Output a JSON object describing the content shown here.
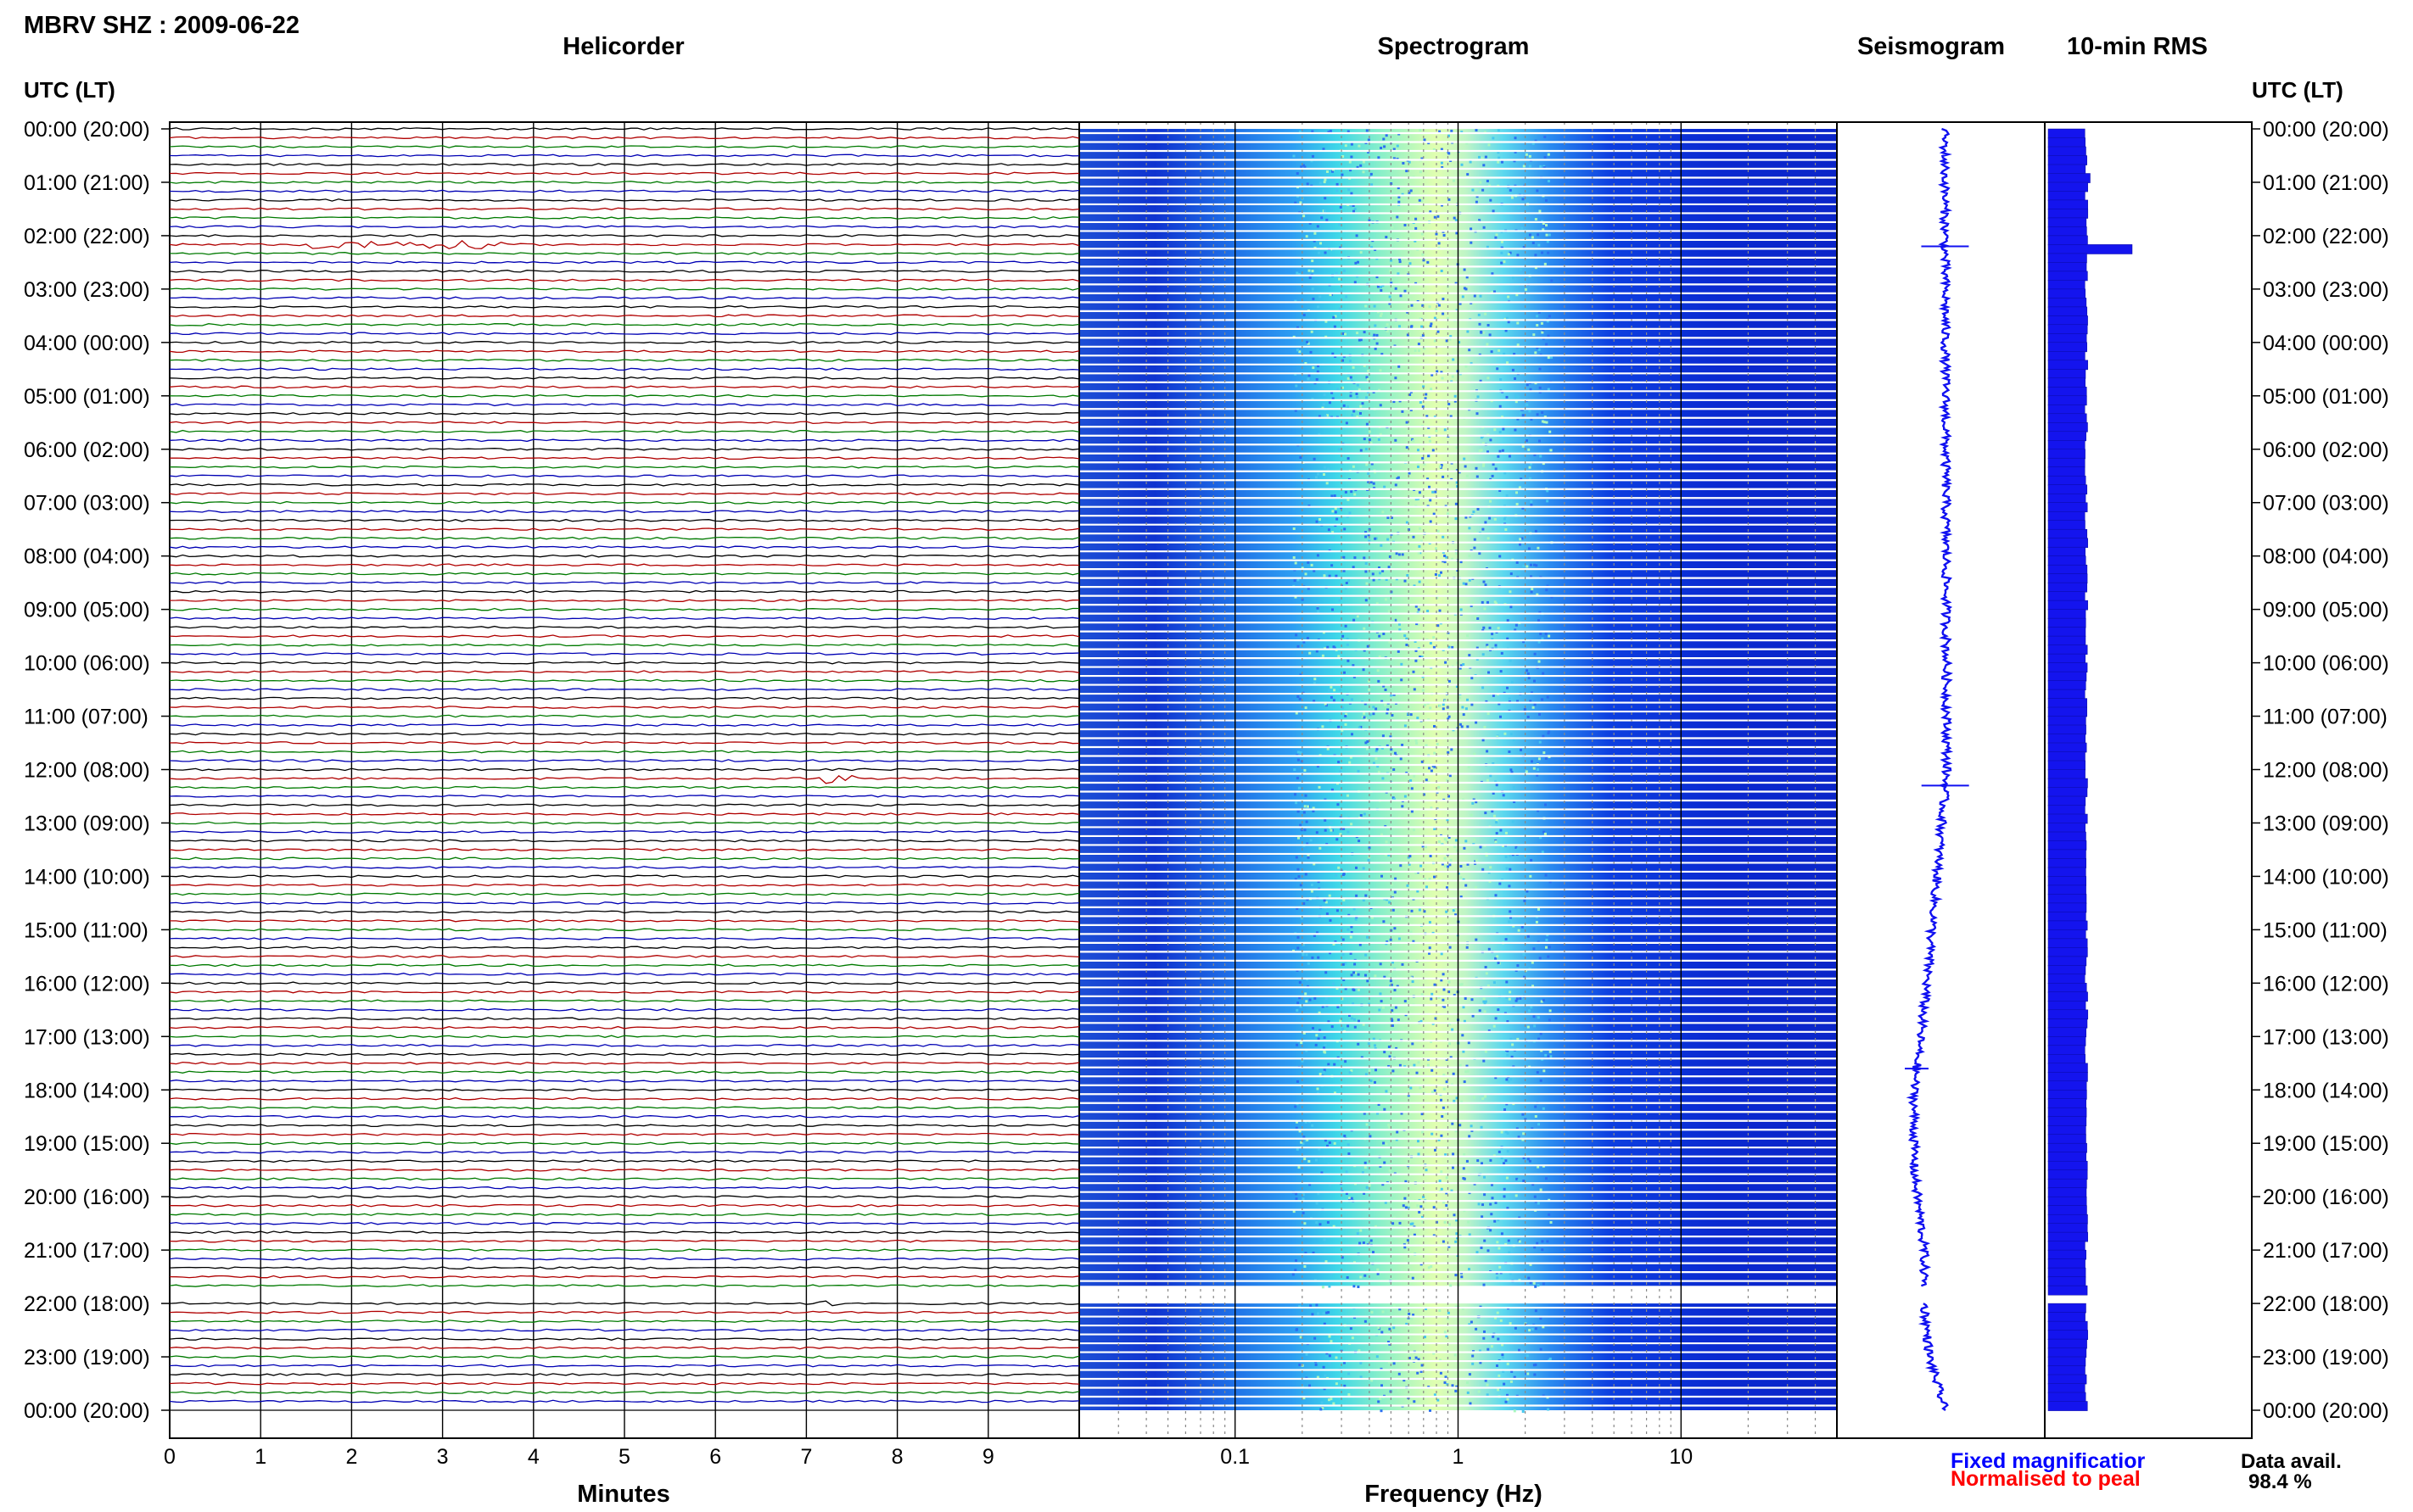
{
  "header": {
    "station_title": "MBRV SHZ : 2009-06-22",
    "helicorder_title": "Helicorder",
    "spectrogram_title": "Spectrogram",
    "seismogram_title": "Seismogram",
    "rms_title": "10-min RMS",
    "left_axis_title": "UTC (LT)",
    "right_axis_title": "UTC (LT)"
  },
  "footer": {
    "minutes_label": "Minutes",
    "frequency_label": "Frequency (Hz)",
    "fixed_magnification": "Fixed magnificatior",
    "normalised_to_peak": "Normalised to peal",
    "data_avail_label": "Data avail.",
    "data_avail_value": "98.4 %"
  },
  "colors": {
    "trace_cycle": [
      "#000000",
      "#b00000",
      "#007a00",
      "#0000b4"
    ],
    "fixed_magnification": "#0000ff",
    "normalised_to_peak": "#ff0000",
    "seismogram": "#1010f0",
    "rms_bar": "#1414ee"
  },
  "chart_data": [
    {
      "type": "line",
      "name": "helicorder",
      "x_axis": {
        "label": "Minutes",
        "ticks": [
          0,
          1,
          2,
          3,
          4,
          5,
          6,
          7,
          8,
          9
        ],
        "range": [
          0,
          10
        ]
      },
      "y_axis": {
        "range_hours": [
          0,
          24
        ],
        "tick_labels": [
          "00:00 (20:00)",
          "01:00 (21:00)",
          "02:00 (22:00)",
          "03:00 (23:00)",
          "04:00 (00:00)",
          "05:00 (01:00)",
          "06:00 (02:00)",
          "07:00 (03:00)",
          "08:00 (04:00)",
          "09:00 (05:00)",
          "10:00 (06:00)",
          "11:00 (07:00)",
          "12:00 (08:00)",
          "13:00 (09:00)",
          "14:00 (10:00)",
          "15:00 (11:00)",
          "16:00 (12:00)",
          "17:00 (13:00)",
          "18:00 (14:00)",
          "19:00 (15:00)",
          "20:00 (16:00)",
          "21:00 (17:00)",
          "22:00 (18:00)",
          "23:00 (19:00)",
          "00:00 (20:00)"
        ]
      },
      "rows_per_hour": 6,
      "row_minutes": 10,
      "events": [
        {
          "hour": 2.17,
          "start_min": 1.5,
          "end_min": 3.7,
          "amplitude": 5
        },
        {
          "hour": 12.17,
          "start_min": 7.2,
          "end_min": 7.5,
          "amplitude": 6
        },
        {
          "hour": 22.0,
          "start_min": 7.1,
          "end_min": 7.4,
          "amplitude": 3
        }
      ],
      "gap_hours": [
        21.67,
        22.0
      ]
    },
    {
      "type": "heatmap",
      "name": "spectrogram",
      "x_axis": {
        "label": "Frequency (Hz)",
        "scale": "log",
        "range": [
          0.02,
          50
        ],
        "tick_values": [
          0.1,
          1,
          10
        ],
        "tick_labels": [
          "0.1",
          "1",
          "10"
        ]
      },
      "peak_band_hz": [
        0.3,
        2.0
      ],
      "gap_hours": [
        21.67,
        22.0
      ]
    },
    {
      "type": "line",
      "name": "seismogram",
      "drift": [
        [
          0,
          0
        ],
        [
          6,
          0.2
        ],
        [
          12,
          0.4
        ],
        [
          14,
          -1.5
        ],
        [
          16,
          -3.5
        ],
        [
          18,
          -6
        ],
        [
          19.5,
          -6
        ],
        [
          21,
          -4
        ],
        [
          22,
          -4
        ],
        [
          23,
          -3
        ],
        [
          24,
          0
        ]
      ],
      "spikes": [
        {
          "hour": 2.2,
          "size": 4
        },
        {
          "hour": 12.3,
          "size": 4
        },
        {
          "hour": 17.6,
          "size": 2
        }
      ],
      "gap_hours": [
        21.67,
        22.0
      ]
    },
    {
      "type": "bar",
      "name": "10-min RMS",
      "bars_per_hour": 6,
      "baseline": 1.0,
      "peaks": [
        {
          "hour": 2.17,
          "value": 2.2
        },
        {
          "hour": 0.9,
          "value": 1.1
        }
      ],
      "gap_hours": [
        21.67,
        22.0
      ]
    }
  ]
}
